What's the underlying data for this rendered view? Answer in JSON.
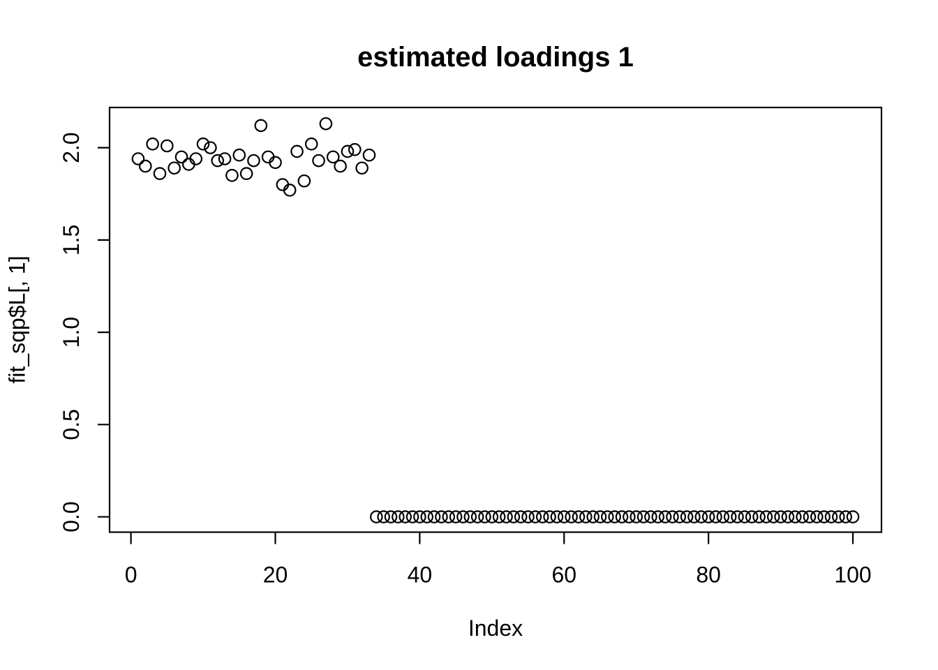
{
  "figure": {
    "background": "#ffffff",
    "foreground": "#000000"
  },
  "chart_data": {
    "type": "scatter",
    "title": "estimated loadings 1",
    "xlabel": "Index",
    "ylabel": "fit_sqp$L[, 1]",
    "marker": "open-circle",
    "marker_color": "#000000",
    "grid": false,
    "legend": null,
    "xlim": [
      -2.96,
      103.96
    ],
    "ylim": [
      -0.083,
      2.218
    ],
    "xticks": [
      "0",
      "20",
      "40",
      "60",
      "80",
      "100"
    ],
    "yticks": [
      "0.0",
      "0.5",
      "1.0",
      "1.5",
      "2.0"
    ],
    "x": [
      1,
      2,
      3,
      4,
      5,
      6,
      7,
      8,
      9,
      10,
      11,
      12,
      13,
      14,
      15,
      16,
      17,
      18,
      19,
      20,
      21,
      22,
      23,
      24,
      25,
      26,
      27,
      28,
      29,
      30,
      31,
      32,
      33,
      34,
      35,
      36,
      37,
      38,
      39,
      40,
      41,
      42,
      43,
      44,
      45,
      46,
      47,
      48,
      49,
      50,
      51,
      52,
      53,
      54,
      55,
      56,
      57,
      58,
      59,
      60,
      61,
      62,
      63,
      64,
      65,
      66,
      67,
      68,
      69,
      70,
      71,
      72,
      73,
      74,
      75,
      76,
      77,
      78,
      79,
      80,
      81,
      82,
      83,
      84,
      85,
      86,
      87,
      88,
      89,
      90,
      91,
      92,
      93,
      94,
      95,
      96,
      97,
      98,
      99,
      100
    ],
    "y": [
      1.94,
      1.9,
      2.02,
      1.86,
      2.01,
      1.89,
      1.95,
      1.91,
      1.94,
      2.02,
      2.0,
      1.93,
      1.94,
      1.85,
      1.96,
      1.86,
      1.93,
      2.12,
      1.95,
      1.92,
      1.8,
      1.77,
      1.98,
      1.82,
      2.02,
      1.93,
      2.13,
      1.95,
      1.9,
      1.98,
      1.99,
      1.89,
      1.96,
      0,
      0,
      0,
      0,
      0,
      0,
      0,
      0,
      0,
      0,
      0,
      0,
      0,
      0,
      0,
      0,
      0,
      0,
      0,
      0,
      0,
      0,
      0,
      0,
      0,
      0,
      0,
      0,
      0,
      0,
      0,
      0,
      0,
      0,
      0,
      0,
      0,
      0,
      0,
      0,
      0,
      0,
      0,
      0,
      0,
      0,
      0,
      0,
      0,
      0,
      0,
      0,
      0,
      0,
      0,
      0,
      0,
      0,
      0,
      0,
      0,
      0,
      0,
      0,
      0,
      0,
      0
    ]
  }
}
